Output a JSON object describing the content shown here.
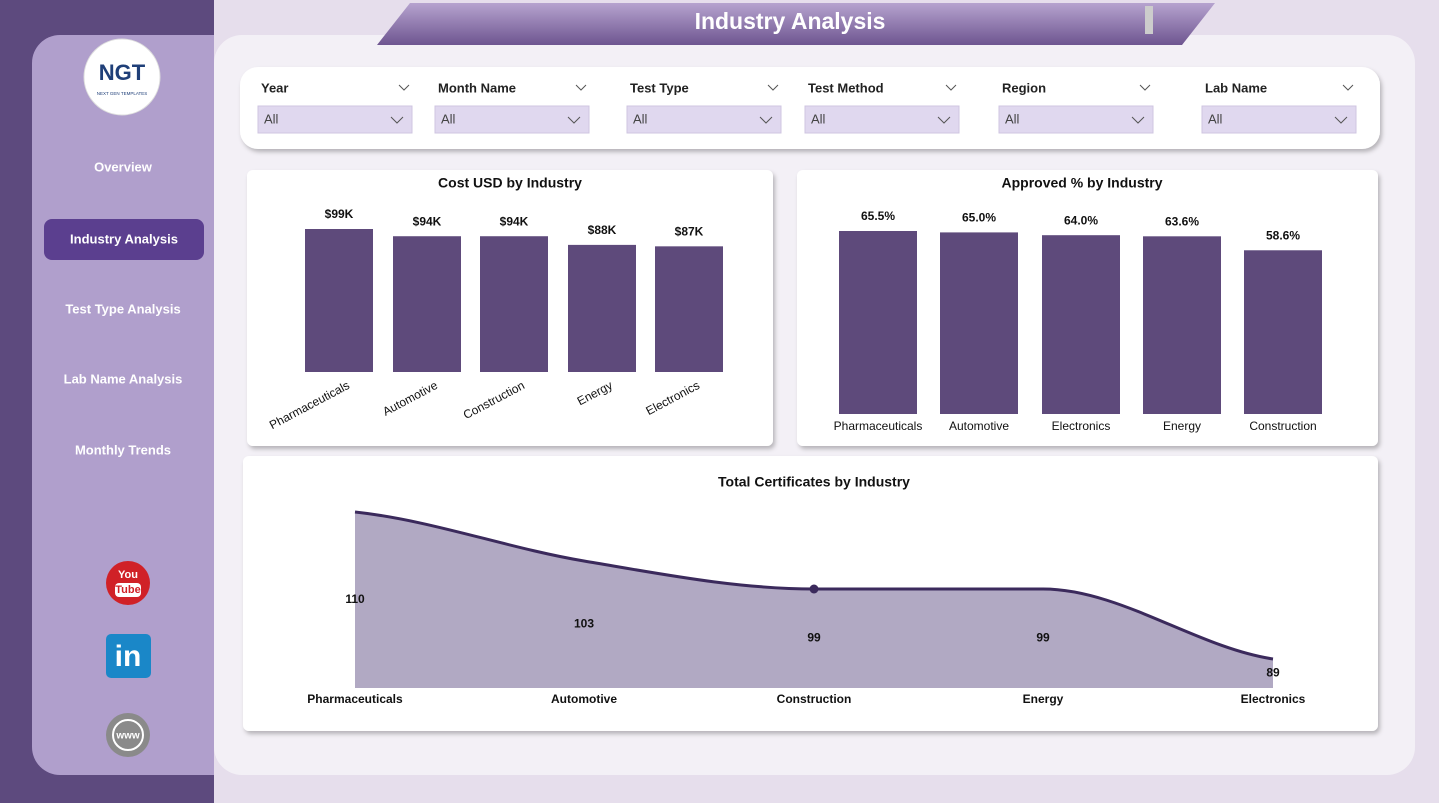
{
  "header": {
    "title": "Industry Analysis"
  },
  "logo": {
    "text": "NGT",
    "subtitle": "NEXT GEN TEMPLATES"
  },
  "nav": [
    "Overview",
    "Industry Analysis",
    "Test Type Analysis",
    "Lab Name Analysis",
    "Monthly Trends"
  ],
  "filters": [
    {
      "label": "Year",
      "value": "All"
    },
    {
      "label": "Month Name",
      "value": "All"
    },
    {
      "label": "Test Type",
      "value": "All"
    },
    {
      "label": "Test Method",
      "value": "All"
    },
    {
      "label": "Region",
      "value": "All"
    },
    {
      "label": "Lab Name",
      "value": "All"
    }
  ],
  "icons": {
    "youtube": [
      "You",
      "Tube"
    ],
    "linkedin": "in",
    "web": "www"
  },
  "chart_data": [
    {
      "type": "bar",
      "title": "Cost USD by Industry",
      "categories": [
        "Pharmaceuticals",
        "Automotive",
        "Construction",
        "Energy",
        "Electronics"
      ],
      "values": [
        99000,
        94000,
        94000,
        88000,
        87000
      ],
      "value_labels": [
        "$99K",
        "$94K",
        "$94K",
        "$88K",
        "$87K"
      ],
      "color": "#5e4a7b"
    },
    {
      "type": "bar",
      "title": "Approved % by Industry",
      "categories": [
        "Pharmaceuticals",
        "Automotive",
        "Electronics",
        "Energy",
        "Construction"
      ],
      "values": [
        65.5,
        65.0,
        64.0,
        63.6,
        58.6
      ],
      "value_labels": [
        "65.5%",
        "65.0%",
        "64.0%",
        "63.6%",
        "58.6%"
      ],
      "color": "#5e4a7b"
    },
    {
      "type": "area",
      "title": "Total Certificates by Industry",
      "categories": [
        "Pharmaceuticals",
        "Automotive",
        "Construction",
        "Energy",
        "Electronics"
      ],
      "values": [
        110,
        103,
        99,
        99,
        89
      ],
      "color": "#3b2a5c",
      "fill": "#b1a9c3"
    }
  ]
}
